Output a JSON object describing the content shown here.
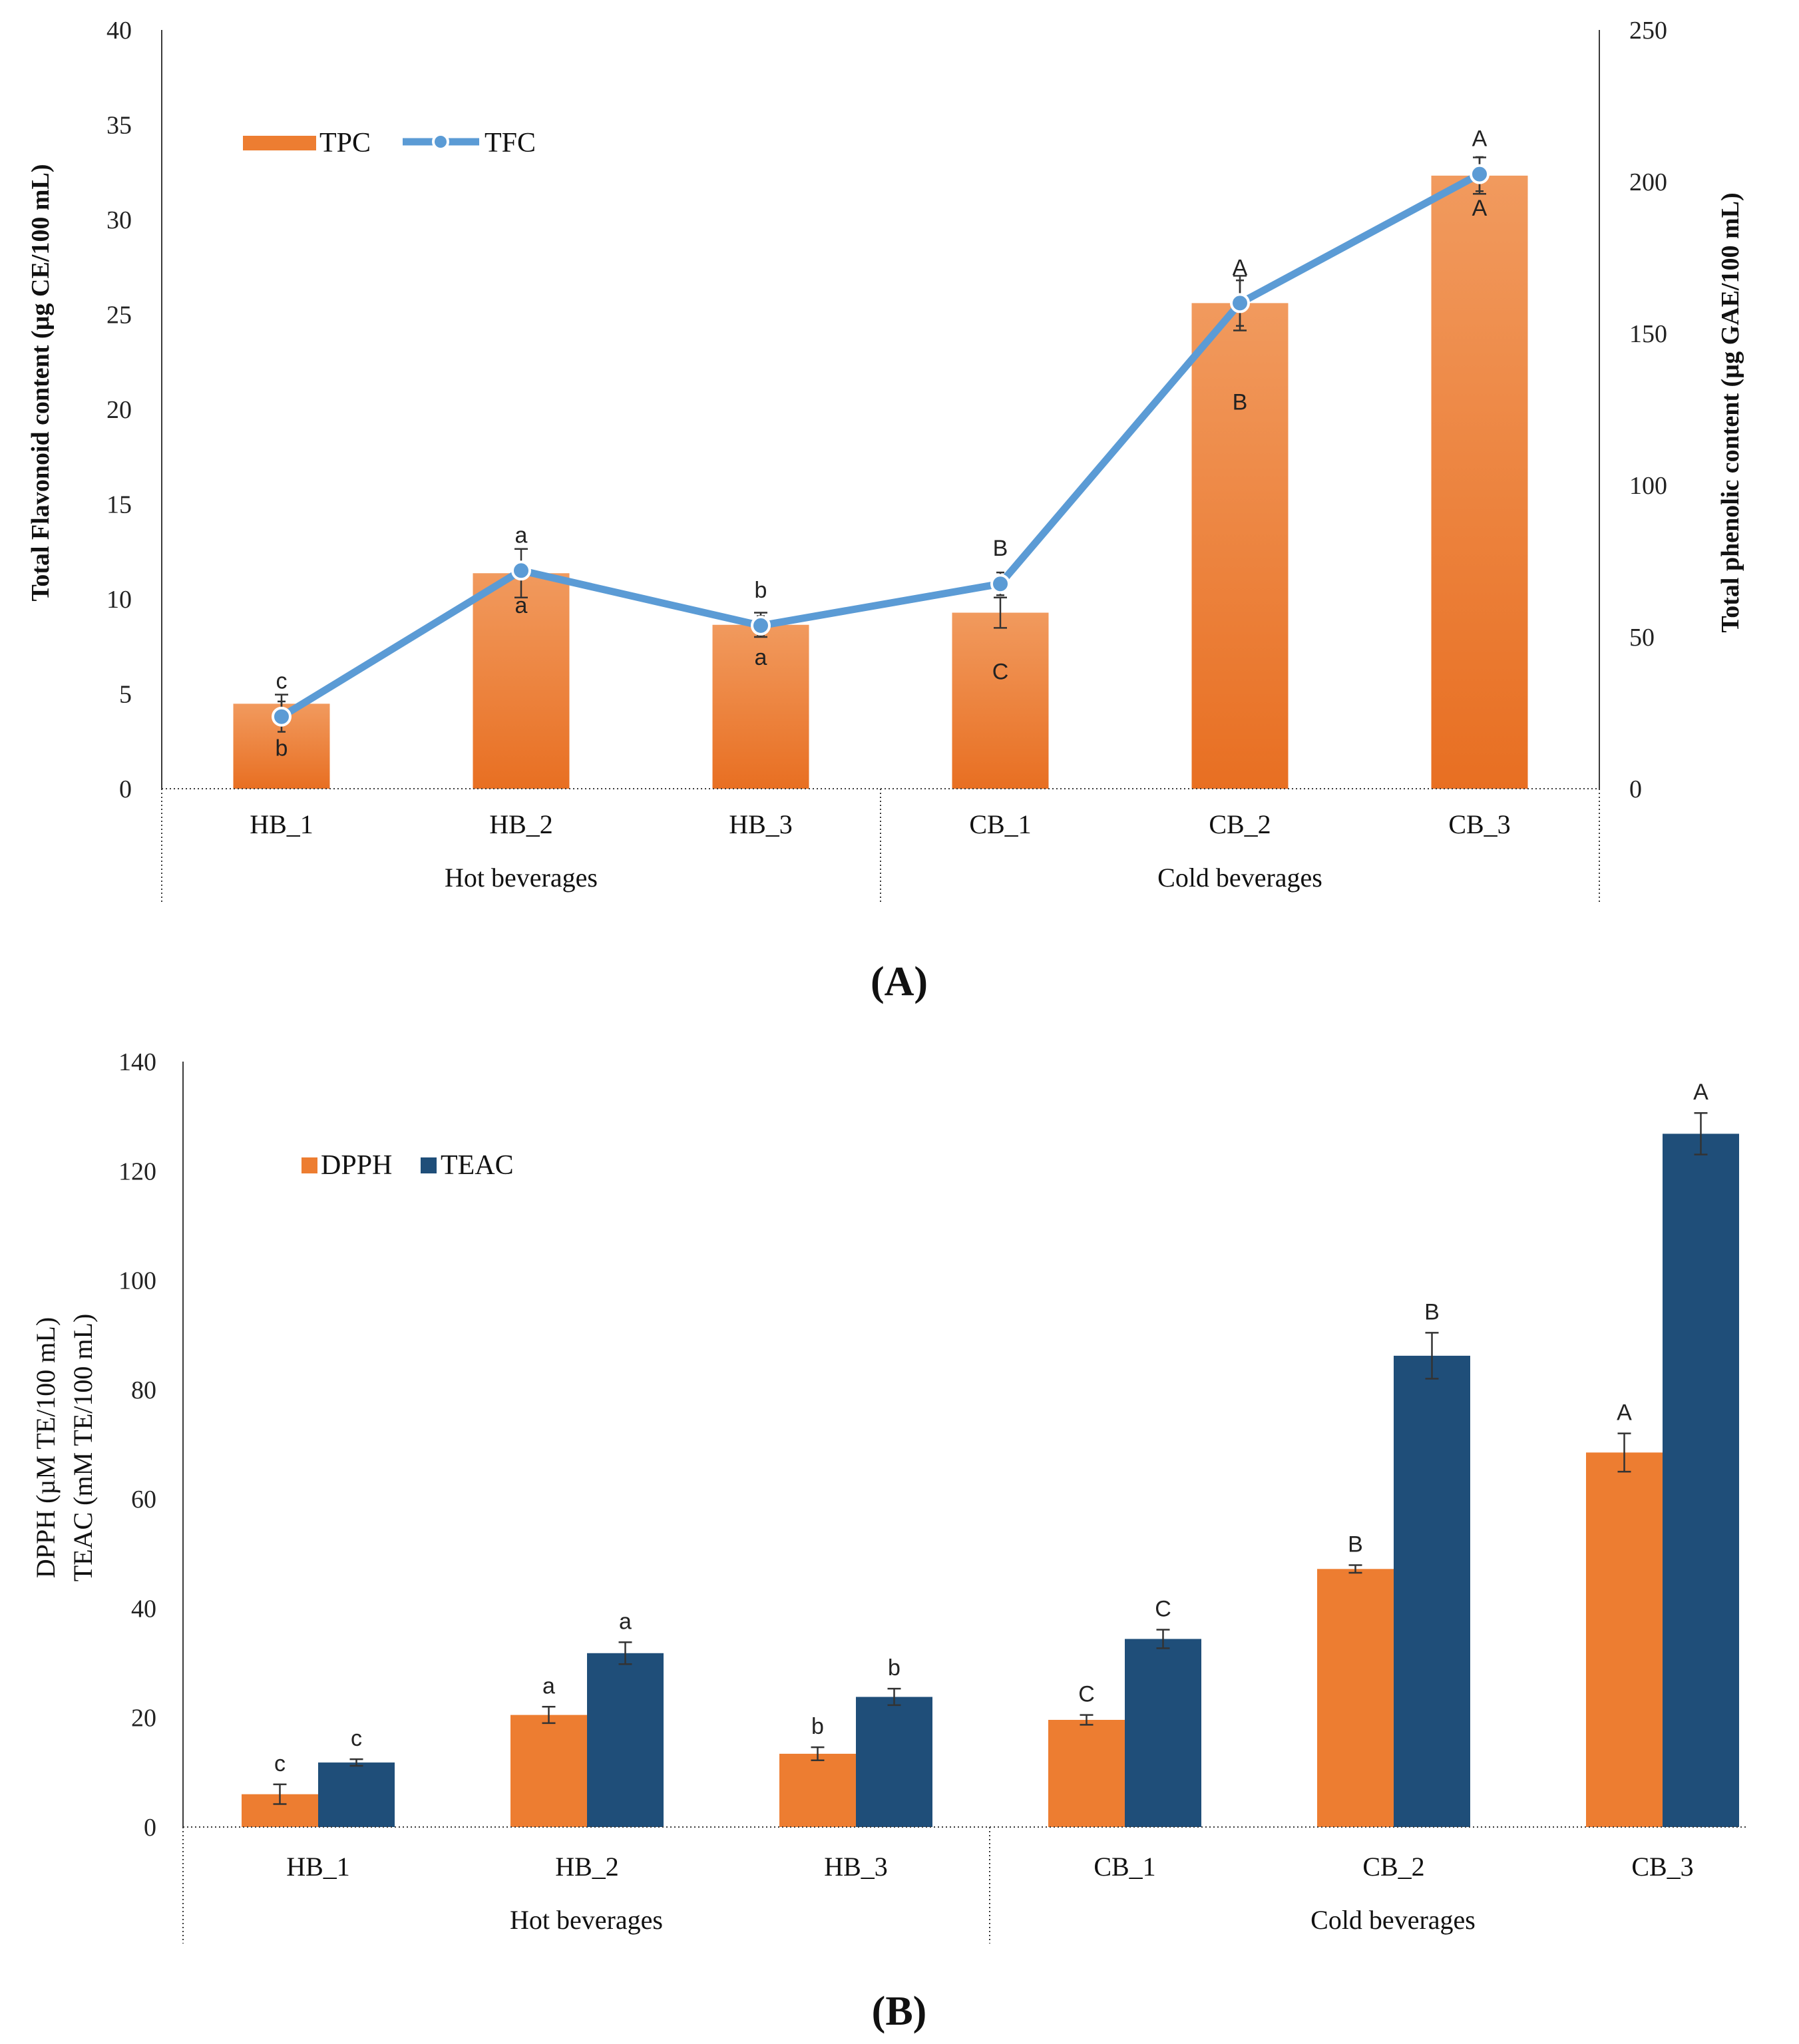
{
  "chart_data": [
    {
      "panel": "(A)",
      "panel_label": "A",
      "type": "bar+line",
      "categories": [
        "HB_1",
        "HB_2",
        "HB_3",
        "CB_1",
        "CB_2",
        "CB_3"
      ],
      "groups": [
        {
          "label": "Hot beverages",
          "categories": [
            "HB_1",
            "HB_2",
            "HB_3"
          ]
        },
        {
          "label": "Cold beverages",
          "categories": [
            "CB_1",
            "CB_2",
            "CB_3"
          ]
        }
      ],
      "left_axis": {
        "label": "Total Flavonoid content  (µg CE/100 mL)",
        "ylim": [
          0,
          40
        ],
        "ticks": [
          "0",
          "5",
          "10",
          "15",
          "20",
          "25",
          "30",
          "35",
          "40"
        ]
      },
      "right_axis": {
        "label": "Total phenolic content (µg GAE/100 mL)",
        "ylim": [
          0,
          250
        ],
        "ticks": [
          "0",
          "50",
          "100",
          "150",
          "200",
          "250"
        ]
      },
      "series": [
        {
          "name": "TPC",
          "kind": "bar",
          "axis": "right",
          "values": [
            28,
            71,
            54,
            58,
            160,
            202
          ],
          "errors": [
            3,
            8,
            4,
            5,
            9,
            6
          ],
          "letters": [
            "b",
            "a",
            "a",
            "C",
            "B",
            "A"
          ],
          "color": "#ED7D31"
        },
        {
          "name": "TFC",
          "kind": "line",
          "axis": "left",
          "values": [
            3.8,
            11.5,
            8.6,
            10.8,
            25.6,
            32.4
          ],
          "errors": [
            0.8,
            0.4,
            0.5,
            0.6,
            1.2,
            0.9
          ],
          "letters": [
            "c",
            "a",
            "b",
            "B",
            "A",
            "A"
          ],
          "color": "#5B9BD5"
        }
      ]
    },
    {
      "panel": "(B)",
      "panel_label": "B",
      "type": "bar",
      "categories": [
        "HB_1",
        "HB_2",
        "HB_3",
        "CB_1",
        "CB_2",
        "CB_3"
      ],
      "groups": [
        {
          "label": "Hot beverages",
          "categories": [
            "HB_1",
            "HB_2",
            "HB_3"
          ]
        },
        {
          "label": "Cold beverages",
          "categories": [
            "CB_1",
            "CB_2",
            "CB_3"
          ]
        }
      ],
      "y_axis": {
        "label_line1": "DPPH (µM TE/100 mL)",
        "label_line2": "TEAC (mM TE/100 mL)",
        "ylim": [
          0,
          140
        ],
        "ticks": [
          "0",
          "20",
          "40",
          "60",
          "80",
          "100",
          "120",
          "140"
        ]
      },
      "series": [
        {
          "name": "DPPH",
          "values": [
            6,
            20.5,
            13.4,
            19.6,
            47.2,
            68.5
          ],
          "errors": [
            1.8,
            1.5,
            1.2,
            0.9,
            0.7,
            3.5
          ],
          "letters": [
            "c",
            "a",
            "b",
            "C",
            "B",
            "A"
          ],
          "color": "#ED7D31"
        },
        {
          "name": "TEAC",
          "values": [
            11.8,
            31.8,
            23.8,
            34.4,
            86.2,
            126.8
          ],
          "errors": [
            0.6,
            2,
            1.5,
            1.7,
            4.2,
            3.8
          ],
          "letters": [
            "c",
            "a",
            "b",
            "C",
            "B",
            "A"
          ],
          "color": "#1F4E79"
        }
      ]
    }
  ]
}
